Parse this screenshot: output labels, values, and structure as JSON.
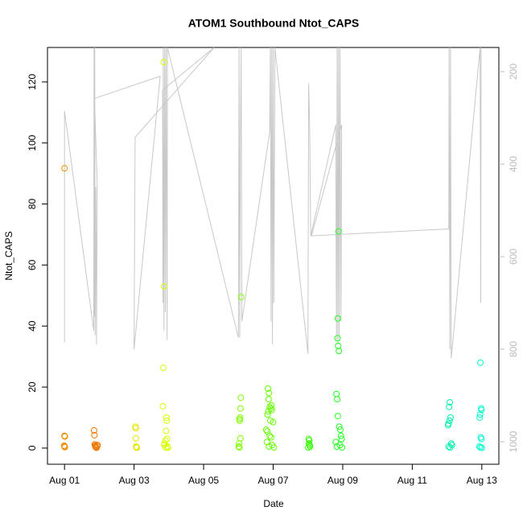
{
  "chart_data": {
    "type": "scatter",
    "title": "ATOM1 Southbound Ntot_CAPS",
    "xlabel": "Date",
    "ylabel": "Ntot_CAPS",
    "xlim": [
      0.51,
      13.49
    ],
    "ylim": [
      -5.3,
      131.3
    ],
    "y2lim": [
      1048.7,
      147.8
    ],
    "xticks": [
      {
        "value": 1,
        "label": "Aug 01"
      },
      {
        "value": 3,
        "label": "Aug 03"
      },
      {
        "value": 5,
        "label": "Aug 05"
      },
      {
        "value": 7,
        "label": "Aug 07"
      },
      {
        "value": 9,
        "label": "Aug 09"
      },
      {
        "value": 11,
        "label": "Aug 11"
      },
      {
        "value": 13,
        "label": "Aug 13"
      }
    ],
    "yticks": [
      0,
      20,
      40,
      60,
      80,
      100,
      120
    ],
    "y2ticks": [
      200,
      400,
      600,
      800,
      1000
    ],
    "series": [
      {
        "type": "line",
        "axis": "y2",
        "color": "#c8c8c8",
        "x": [
          1.0,
          1.0,
          1.0,
          1.84,
          1.85,
          1.86,
          1.87,
          1.88,
          1.9,
          1.92,
          1.94,
          1.86,
          3.75,
          3.0,
          3.03,
          5.3,
          3.82,
          3.83,
          3.84,
          3.86,
          3.88,
          3.9,
          3.92,
          3.95,
          3.96,
          6.0,
          6.02,
          6.04,
          6.06,
          6.08,
          6.1,
          6.9,
          6.92,
          6.94,
          6.96,
          6.98,
          7.0,
          7.02,
          7.05,
          8.0,
          8.02,
          8.05,
          8.08,
          8.8,
          8.82,
          8.84,
          8.86,
          8.88,
          8.9,
          8.92,
          8.95,
          8.97,
          8.1,
          12.05,
          12.06,
          12.08,
          12.1,
          12.12,
          12.95,
          12.97,
          12.98
        ],
        "values": [
          600,
          785,
          285,
          760,
          148,
          730,
          148,
          770,
          450,
          790,
          440,
          258,
          210,
          800,
          342,
          148,
          240,
          700,
          148,
          760,
          148,
          720,
          148,
          780,
          148,
          775,
          148,
          775,
          330,
          148,
          740,
          330,
          148,
          740,
          148,
          790,
          148,
          700,
          148,
          810,
          225,
          320,
          555,
          315,
          780,
          148,
          790,
          148,
          770,
          148,
          740,
          315,
          555,
          540,
          148,
          800,
          148,
          820,
          148,
          700,
          148
        ]
      },
      {
        "color": "#f08c00",
        "x": [
          1.0,
          1.0,
          1.01,
          1.0,
          1.01,
          0.99
        ],
        "values": [
          91.7,
          4,
          3.8,
          0.5,
          0.3,
          0.8
        ]
      },
      {
        "color": "#f07800",
        "x": [
          1.85,
          1.86,
          1.87,
          1.88,
          1.89,
          1.9,
          1.92,
          1.94,
          1.95
        ],
        "values": [
          5.8,
          4.2,
          1.2,
          0.8,
          0.5,
          0.3,
          0.1,
          0.6,
          1.0
        ]
      },
      {
        "color": "#e6e600",
        "x": [
          3.04,
          3.05,
          3.05,
          3.06,
          3.07,
          3.08
        ],
        "values": [
          7,
          6.5,
          3.2,
          0.5,
          0.2,
          0.1
        ]
      },
      {
        "color": "#d8ff00",
        "x": [
          3.85,
          3.86,
          3.84,
          3.83,
          3.93,
          3.94,
          3.92,
          3.95,
          3.9,
          3.88,
          3.87,
          3.96,
          3.91,
          3.97
        ],
        "values": [
          126.5,
          53,
          26.3,
          13.7,
          10,
          9,
          5.6,
          3,
          2.5,
          1.5,
          1,
          0.5,
          0.2,
          0.1
        ]
      },
      {
        "color": "#80ff00",
        "x": [
          6.08,
          6.07,
          6.06,
          6.05,
          6.03,
          6.04,
          6.06,
          6.02,
          6.01,
          6.03
        ],
        "values": [
          49.5,
          16.5,
          13,
          10,
          9.5,
          9,
          3.2,
          1.5,
          0.5,
          0.2
        ]
      },
      {
        "color": "#66ff00",
        "x": [
          6.85,
          6.88,
          6.87,
          6.95,
          6.9,
          6.93,
          6.96,
          6.86,
          6.84,
          6.92,
          7.0,
          6.8,
          6.83,
          6.9,
          6.94,
          6.82,
          6.97,
          6.88,
          7.02
        ],
        "values": [
          19.5,
          18,
          16,
          14,
          13.5,
          13,
          12.5,
          12,
          11,
          9,
          8.5,
          6,
          5.5,
          4,
          3.5,
          2,
          1,
          0.5,
          0.2
        ]
      },
      {
        "color": "#33ff00",
        "x": [
          8.02,
          8.04,
          8.03,
          8.05,
          8.06,
          8.01
        ],
        "values": [
          3,
          2.5,
          1.5,
          1,
          0.5,
          0.2
        ]
      },
      {
        "color": "#22ff22",
        "x": [
          8.88,
          8.86,
          8.85,
          8.87,
          8.89,
          8.82,
          8.84,
          8.86,
          8.9,
          8.93,
          8.95,
          8.97,
          8.8,
          8.92,
          8.83,
          8.98
        ],
        "values": [
          71,
          42.5,
          36,
          33.5,
          31.8,
          17.7,
          16,
          10.5,
          7,
          6,
          4,
          3,
          2,
          1,
          0.5,
          0.2
        ]
      },
      {
        "color": "#00f0b0",
        "x": [
          12.08,
          12.06,
          12.1,
          12.07,
          12.04,
          12.03,
          12.12,
          12.14,
          12.05,
          12.09
        ],
        "values": [
          15,
          13.5,
          10,
          9,
          8,
          7.5,
          1.5,
          1,
          0.5,
          0.2
        ]
      },
      {
        "color": "#00ffcc",
        "x": [
          12.96,
          12.98,
          12.99,
          12.95,
          12.94,
          12.97,
          12.99,
          12.93,
          12.96,
          13.0
        ],
        "values": [
          28,
          13,
          12.5,
          11,
          10,
          3.5,
          3,
          0.5,
          0.2,
          0.1
        ]
      }
    ]
  }
}
